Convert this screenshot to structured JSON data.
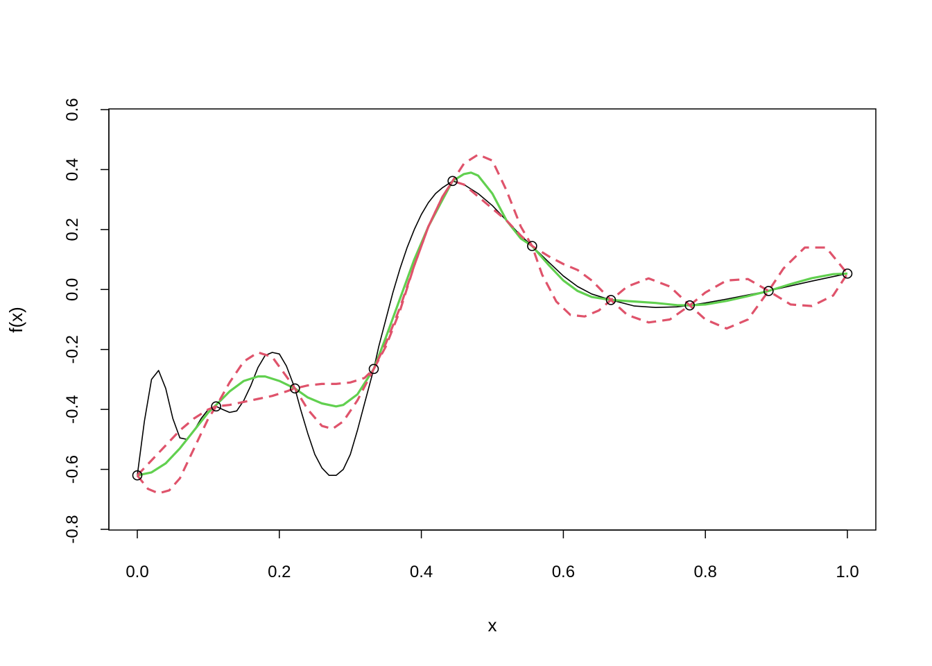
{
  "chart_data": {
    "type": "line",
    "title": "",
    "xlabel": "x",
    "ylabel": "f(x)",
    "xlim": [
      0,
      1
    ],
    "ylim": [
      -0.8,
      0.6
    ],
    "x_ticks": [
      "0.0",
      "0.2",
      "0.4",
      "0.6",
      "0.8",
      "1.0"
    ],
    "y_ticks": [
      "-0.8",
      "-0.6",
      "-0.4",
      "-0.2",
      "0.0",
      "0.2",
      "0.4",
      "0.6"
    ],
    "x_tick_values": [
      0,
      0.2,
      0.4,
      0.6,
      0.8,
      1.0
    ],
    "y_tick_values": [
      -0.8,
      -0.6,
      -0.4,
      -0.2,
      0.0,
      0.2,
      0.4,
      0.6
    ],
    "grid": false,
    "legend": "none",
    "colors": {
      "truth": "#000000",
      "mean": "#61d04f",
      "bounds": "#df536b",
      "points": "#000000"
    },
    "points": {
      "x": [
        0,
        0.111,
        0.222,
        0.333,
        0.444,
        0.556,
        0.667,
        0.778,
        0.889,
        1.0
      ],
      "y": [
        -0.62,
        -0.39,
        -0.33,
        -0.265,
        0.362,
        0.145,
        -0.035,
        -0.053,
        -0.005,
        0.053
      ]
    },
    "series": [
      {
        "style": "solid-thin",
        "color": "#000000",
        "x": [
          0,
          0.01,
          0.02,
          0.03,
          0.04,
          0.05,
          0.06,
          0.07,
          0.08,
          0.09,
          0.1,
          0.111,
          0.12,
          0.13,
          0.14,
          0.15,
          0.16,
          0.17,
          0.18,
          0.19,
          0.2,
          0.21,
          0.222,
          0.23,
          0.24,
          0.25,
          0.26,
          0.27,
          0.28,
          0.29,
          0.3,
          0.31,
          0.32,
          0.333,
          0.34,
          0.35,
          0.36,
          0.37,
          0.38,
          0.39,
          0.4,
          0.41,
          0.42,
          0.43,
          0.444,
          0.46,
          0.48,
          0.5,
          0.52,
          0.54,
          0.556,
          0.58,
          0.6,
          0.62,
          0.64,
          0.667,
          0.7,
          0.73,
          0.76,
          0.778,
          0.8,
          0.83,
          0.86,
          0.889,
          0.92,
          0.95,
          0.98,
          1.0
        ],
        "y": [
          -0.62,
          -0.44,
          -0.3,
          -0.27,
          -0.33,
          -0.43,
          -0.495,
          -0.5,
          -0.47,
          -0.43,
          -0.4,
          -0.39,
          -0.4,
          -0.41,
          -0.405,
          -0.37,
          -0.32,
          -0.26,
          -0.22,
          -0.21,
          -0.215,
          -0.255,
          -0.33,
          -0.4,
          -0.48,
          -0.55,
          -0.595,
          -0.62,
          -0.62,
          -0.6,
          -0.55,
          -0.47,
          -0.38,
          -0.265,
          -0.19,
          -0.1,
          -0.01,
          0.07,
          0.14,
          0.2,
          0.25,
          0.29,
          0.32,
          0.34,
          0.362,
          0.35,
          0.32,
          0.28,
          0.23,
          0.18,
          0.145,
          0.09,
          0.045,
          0.01,
          -0.015,
          -0.035,
          -0.055,
          -0.06,
          -0.058,
          -0.053,
          -0.045,
          -0.032,
          -0.018,
          -0.005,
          0.012,
          0.028,
          0.043,
          0.053
        ]
      },
      {
        "style": "solid-thick",
        "color": "#61d04f",
        "x": [
          0,
          0.02,
          0.04,
          0.06,
          0.08,
          0.1,
          0.111,
          0.13,
          0.15,
          0.17,
          0.18,
          0.2,
          0.222,
          0.24,
          0.26,
          0.28,
          0.29,
          0.31,
          0.333,
          0.35,
          0.37,
          0.39,
          0.41,
          0.43,
          0.444,
          0.46,
          0.47,
          0.48,
          0.5,
          0.52,
          0.54,
          0.556,
          0.58,
          0.6,
          0.62,
          0.64,
          0.667,
          0.7,
          0.73,
          0.76,
          0.778,
          0.8,
          0.83,
          0.86,
          0.889,
          0.92,
          0.95,
          0.98,
          1.0
        ],
        "y": [
          -0.62,
          -0.61,
          -0.58,
          -0.53,
          -0.47,
          -0.41,
          -0.385,
          -0.34,
          -0.305,
          -0.29,
          -0.29,
          -0.305,
          -0.33,
          -0.36,
          -0.38,
          -0.39,
          -0.385,
          -0.35,
          -0.265,
          -0.16,
          -0.03,
          0.1,
          0.21,
          0.3,
          0.362,
          0.385,
          0.39,
          0.38,
          0.32,
          0.23,
          0.17,
          0.145,
          0.08,
          0.03,
          -0.005,
          -0.025,
          -0.035,
          -0.04,
          -0.045,
          -0.052,
          -0.053,
          -0.05,
          -0.038,
          -0.022,
          -0.005,
          0.018,
          0.038,
          0.051,
          0.053
        ]
      },
      {
        "style": "dashed",
        "color": "#df536b",
        "x": [
          0,
          0.015,
          0.03,
          0.045,
          0.06,
          0.08,
          0.1,
          0.111,
          0.13,
          0.15,
          0.17,
          0.19,
          0.21,
          0.222,
          0.24,
          0.26,
          0.275,
          0.29,
          0.31,
          0.333,
          0.35,
          0.37,
          0.39,
          0.41,
          0.43,
          0.444,
          0.46,
          0.48,
          0.5,
          0.52,
          0.54,
          0.556,
          0.57,
          0.59,
          0.61,
          0.63,
          0.65,
          0.667,
          0.69,
          0.72,
          0.75,
          0.778,
          0.8,
          0.83,
          0.86,
          0.889,
          0.91,
          0.94,
          0.97,
          1.0
        ],
        "y": [
          -0.62,
          -0.665,
          -0.68,
          -0.67,
          -0.63,
          -0.53,
          -0.43,
          -0.39,
          -0.31,
          -0.24,
          -0.21,
          -0.225,
          -0.29,
          -0.33,
          -0.4,
          -0.455,
          -0.465,
          -0.44,
          -0.37,
          -0.265,
          -0.18,
          -0.06,
          0.08,
          0.21,
          0.31,
          0.362,
          0.42,
          0.45,
          0.43,
          0.33,
          0.21,
          0.145,
          0.05,
          -0.04,
          -0.085,
          -0.09,
          -0.07,
          -0.035,
          0.01,
          0.037,
          0.01,
          -0.053,
          -0.1,
          -0.13,
          -0.1,
          -0.005,
          0.07,
          0.14,
          0.14,
          0.053
        ]
      },
      {
        "style": "dashed",
        "color": "#df536b",
        "x": [
          0,
          0.02,
          0.04,
          0.06,
          0.08,
          0.1,
          0.111,
          0.13,
          0.15,
          0.17,
          0.19,
          0.21,
          0.222,
          0.24,
          0.26,
          0.28,
          0.3,
          0.32,
          0.333,
          0.35,
          0.37,
          0.39,
          0.41,
          0.43,
          0.444,
          0.46,
          0.48,
          0.5,
          0.52,
          0.54,
          0.556,
          0.58,
          0.6,
          0.62,
          0.64,
          0.667,
          0.69,
          0.72,
          0.75,
          0.778,
          0.8,
          0.83,
          0.86,
          0.889,
          0.92,
          0.95,
          0.98,
          1.0
        ],
        "y": [
          -0.62,
          -0.57,
          -0.52,
          -0.47,
          -0.43,
          -0.4,
          -0.39,
          -0.385,
          -0.375,
          -0.365,
          -0.355,
          -0.34,
          -0.33,
          -0.32,
          -0.315,
          -0.315,
          -0.31,
          -0.295,
          -0.265,
          -0.19,
          -0.07,
          0.08,
          0.21,
          0.31,
          0.362,
          0.35,
          0.31,
          0.27,
          0.23,
          0.18,
          0.145,
          0.11,
          0.085,
          0.065,
          0.03,
          -0.035,
          -0.085,
          -0.11,
          -0.1,
          -0.053,
          -0.01,
          0.03,
          0.035,
          -0.005,
          -0.05,
          -0.055,
          -0.02,
          0.053
        ]
      }
    ]
  }
}
